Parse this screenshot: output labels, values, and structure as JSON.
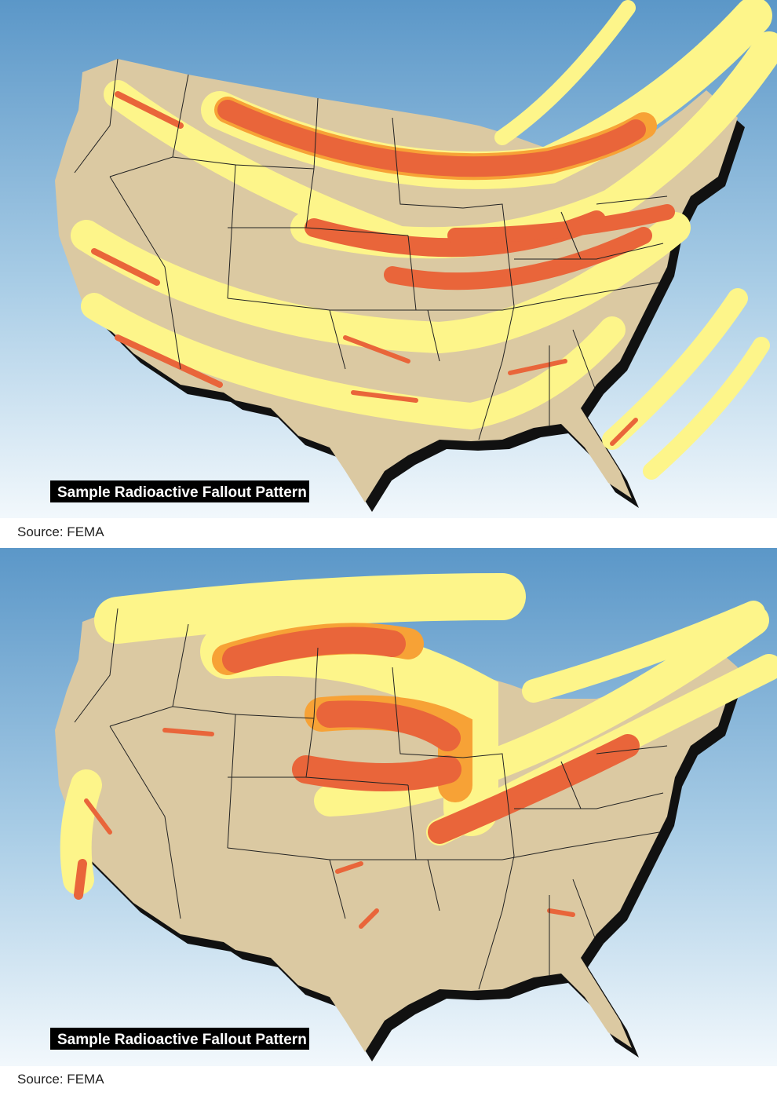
{
  "panels": [
    {
      "title": "Sample Radioactive Fallout Pattern",
      "source": "Source: FEMA"
    },
    {
      "title": "Sample Radioactive Fallout Pattern",
      "source": "Source: FEMA"
    }
  ]
}
